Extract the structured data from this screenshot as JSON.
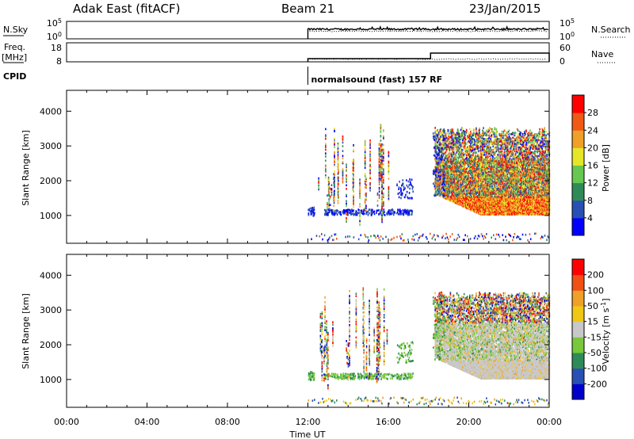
{
  "header": {
    "radar": "Adak East (fitACF)",
    "beam": "Beam 21",
    "date": "23/Jan/2015"
  },
  "chart_data": [
    {
      "type": "line",
      "name": "nsky-nsearch-panel",
      "left_label": "N.Sky",
      "right_label": "N.Search",
      "left_ticks": [
        "10^5",
        "10^0"
      ],
      "right_ticks": [
        "10^5",
        "10^0"
      ],
      "x_range_hours": [
        12,
        24
      ],
      "series": [
        {
          "name": "N.Sky",
          "style": "solid"
        },
        {
          "name": "N.Search",
          "style": "dotted"
        }
      ]
    },
    {
      "type": "line",
      "name": "freq-nave-panel",
      "left_label_1": "Freq.",
      "left_label_2": "[MHz]",
      "right_label": "Nave",
      "left_ticks": [
        "18",
        "8"
      ],
      "right_ticks": [
        "60",
        "0"
      ],
      "series": [
        {
          "name": "Freq.",
          "style": "solid",
          "x": [
            12,
            18.1,
            18.1,
            24
          ],
          "y": [
            10,
            10,
            13.5,
            13.5
          ]
        },
        {
          "name": "Nave",
          "style": "dotted"
        }
      ]
    },
    {
      "type": "text",
      "name": "cpid-row",
      "label": "CPID",
      "x_start_hours": 12,
      "text": "normalsound (fast) 157 RF"
    },
    {
      "type": "heatmap",
      "name": "power-panel",
      "ylabel": "Slant Range [km]",
      "ylim": [
        200,
        4600
      ],
      "y_ticks": [
        "1000",
        "2000",
        "3000",
        "4000"
      ],
      "colorbar": {
        "label": "Power [dB]",
        "ticks": [
          "4",
          "8",
          "12",
          "16",
          "20",
          "24",
          "28"
        ],
        "colors": [
          "#0000ff",
          "#2850b4",
          "#2e8b57",
          "#66c850",
          "#e6e628",
          "#f0a028",
          "#f05a14",
          "#ff0000"
        ]
      }
    },
    {
      "type": "heatmap",
      "name": "velocity-panel",
      "ylabel": "Slant Range [km]",
      "ylim": [
        200,
        4600
      ],
      "y_ticks": [
        "1000",
        "2000",
        "3000",
        "4000"
      ],
      "colorbar": {
        "label": "Velocity [m s^-1]",
        "ticks": [
          "200",
          "100",
          "50",
          "15",
          "-15",
          "-50",
          "-100",
          "-200"
        ],
        "colors": [
          "#0000cd",
          "#2850b4",
          "#2e8b57",
          "#78c83c",
          "#c8c8c8",
          "#f0c814",
          "#f0a028",
          "#f05014",
          "#ff0000"
        ]
      }
    }
  ],
  "x_axis": {
    "label": "Time UT",
    "range_hours": [
      0,
      24
    ],
    "ticks": [
      "00:00",
      "04:00",
      "08:00",
      "12:00",
      "16:00",
      "20:00",
      "00:00"
    ]
  }
}
